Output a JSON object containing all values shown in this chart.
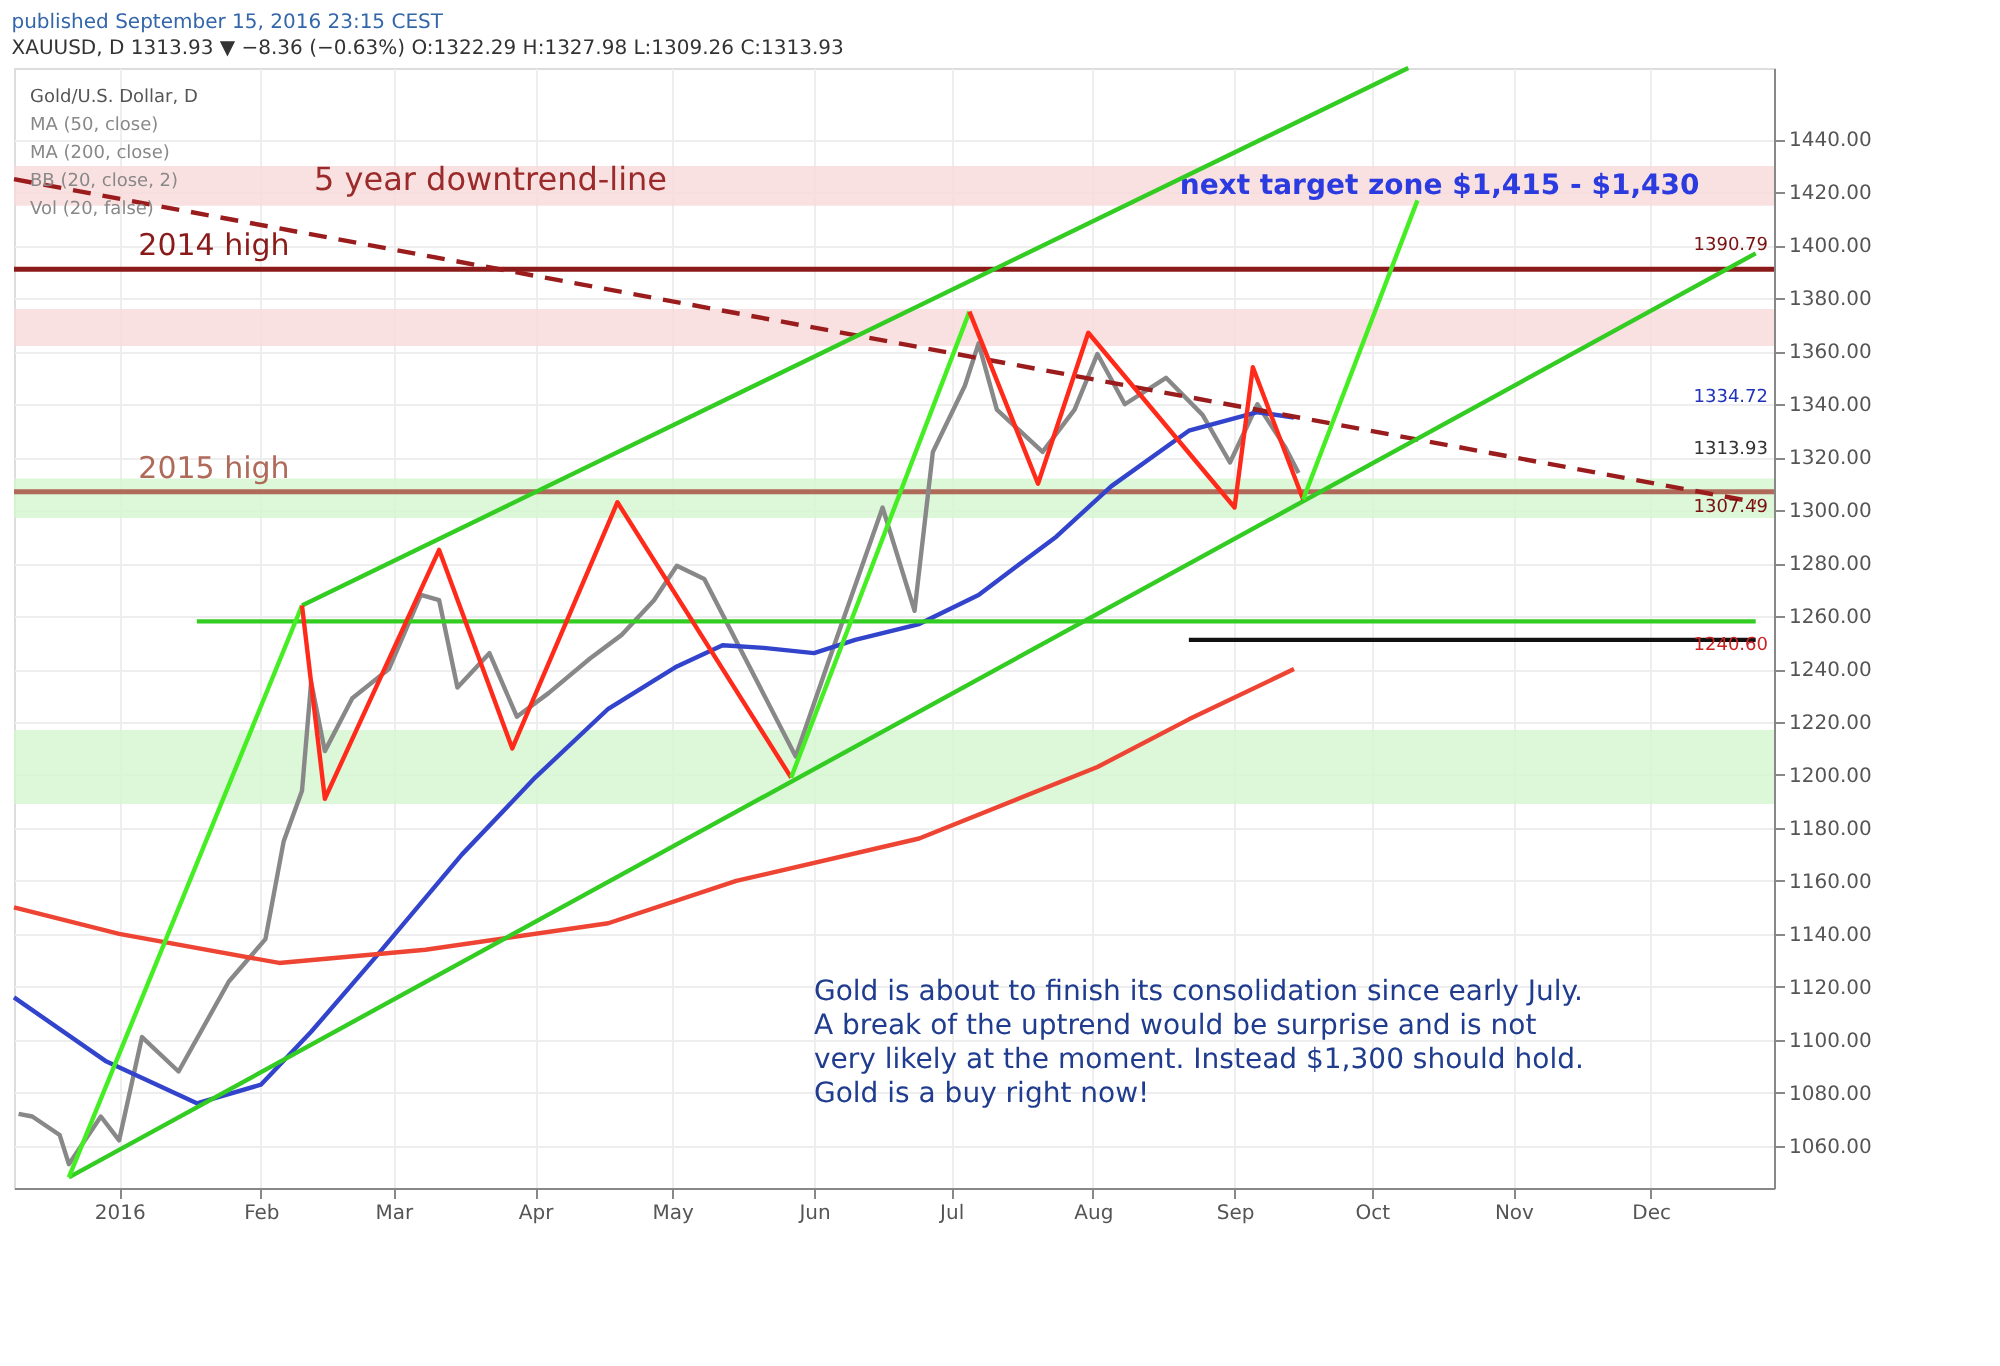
{
  "chart_data": {
    "type": "line",
    "title": "published September 15, 2016 23:15 CEST",
    "subtitle": "XAUUSD, D 1313.93 ▼ −8.36 (−0.63%) O:1322.29 H:1327.98 L:1309.26 C:1313.93",
    "xlim": [
      "2015-12-09",
      "2016-12-28"
    ],
    "ylim": [
      1044,
      1467
    ],
    "xticks": [
      {
        "value": "2016-01-01",
        "label": "2016"
      },
      {
        "value": "2016-02-01",
        "label": "Feb"
      },
      {
        "value": "2016-03-01",
        "label": "Mar"
      },
      {
        "value": "2016-04-01",
        "label": "Apr"
      },
      {
        "value": "2016-05-01",
        "label": "May"
      },
      {
        "value": "2016-06-01",
        "label": "Jun"
      },
      {
        "value": "2016-07-01",
        "label": "Jul"
      },
      {
        "value": "2016-08-01",
        "label": "Aug"
      },
      {
        "value": "2016-09-01",
        "label": "Sep"
      },
      {
        "value": "2016-10-01",
        "label": "Oct"
      },
      {
        "value": "2016-11-01",
        "label": "Nov"
      },
      {
        "value": "2016-12-01",
        "label": "Dec"
      }
    ],
    "yticks": [
      {
        "value": 1060,
        "label": "1060.00"
      },
      {
        "value": 1080,
        "label": "1080.00"
      },
      {
        "value": 1100,
        "label": "1100.00"
      },
      {
        "value": 1120,
        "label": "1120.00"
      },
      {
        "value": 1140,
        "label": "1140.00"
      },
      {
        "value": 1160,
        "label": "1160.00"
      },
      {
        "value": 1180,
        "label": "1180.00"
      },
      {
        "value": 1200,
        "label": "1200.00"
      },
      {
        "value": 1220,
        "label": "1220.00"
      },
      {
        "value": 1240,
        "label": "1240.00"
      },
      {
        "value": 1260,
        "label": "1260.00"
      },
      {
        "value": 1280,
        "label": "1280.00"
      },
      {
        "value": 1300,
        "label": "1300.00"
      },
      {
        "value": 1320,
        "label": "1320.00"
      },
      {
        "value": 1340,
        "label": "1340.00"
      },
      {
        "value": 1360,
        "label": "1360.00"
      },
      {
        "value": 1380,
        "label": "1380.00"
      },
      {
        "value": 1400,
        "label": "1400.00"
      },
      {
        "value": 1420,
        "label": "1420.00"
      },
      {
        "value": 1440,
        "label": "1440.00"
      }
    ],
    "grid": true,
    "bands": [
      {
        "axis": "y",
        "from": 1362,
        "to": 1376,
        "color": "#f9dada"
      },
      {
        "axis": "y",
        "from": 1297,
        "to": 1312,
        "color": "#d4f5d0"
      },
      {
        "axis": "y",
        "from": 1189,
        "to": 1217,
        "color": "#d4f5d0"
      },
      {
        "axis": "y",
        "from": 1415,
        "to": 1430,
        "color": "#f9dada",
        "label": "next target zone $1,415 - $1,430"
      }
    ],
    "ref_lines": [
      {
        "axis": "y",
        "value": 1391,
        "label": "2014 high",
        "color": "#8b1a1a"
      },
      {
        "axis": "y",
        "value": 1307,
        "label": "2015 high",
        "color": "#b06a5a"
      }
    ],
    "series": [
      {
        "type": "line",
        "color": "#888888",
        "line_style": "solid",
        "x": [
          "2015-12-10",
          "2015-12-13",
          "2015-12-19",
          "2015-12-21",
          "2015-12-28",
          "2016-01-01",
          "2016-01-06",
          "2016-01-14",
          "2016-01-25",
          "2016-02-02",
          "2016-02-06",
          "2016-02-10",
          "2016-02-12",
          "2016-02-15",
          "2016-02-21",
          "2016-02-29",
          "2016-03-07",
          "2016-03-11",
          "2016-03-15",
          "2016-03-22",
          "2016-03-28",
          "2016-04-04",
          "2016-04-13",
          "2016-04-20",
          "2016-04-27",
          "2016-05-02",
          "2016-05-08",
          "2016-05-28",
          "2016-06-04",
          "2016-06-16",
          "2016-06-23",
          "2016-06-27",
          "2016-07-04",
          "2016-07-07",
          "2016-07-11",
          "2016-07-21",
          "2016-07-28",
          "2016-08-02",
          "2016-08-08",
          "2016-08-17",
          "2016-08-25",
          "2016-08-31",
          "2016-09-06",
          "2016-09-12",
          "2016-09-15"
        ],
        "values": [
          1072,
          1071,
          1064,
          1053,
          1071,
          1062,
          1101,
          1088,
          1122,
          1138,
          1175,
          1194,
          1235,
          1209,
          1229,
          1240,
          1268,
          1266,
          1233,
          1246,
          1222,
          1231,
          1244,
          1253,
          1266,
          1279,
          1274,
          1207,
          1242,
          1301,
          1262,
          1322,
          1347,
          1363,
          1338,
          1322,
          1338,
          1359,
          1340,
          1350,
          1336,
          1318,
          1340,
          1324,
          1314
        ]
      },
      {
        "type": "line",
        "color": "#3344cc",
        "line_style": "solid",
        "x": [
          "2015-12-09",
          "2015-12-29",
          "2016-01-18",
          "2016-02-01",
          "2016-02-12",
          "2016-02-26",
          "2016-03-16",
          "2016-04-01",
          "2016-04-17",
          "2016-05-02",
          "2016-05-12",
          "2016-05-21",
          "2016-06-01",
          "2016-06-10",
          "2016-06-24",
          "2016-07-07",
          "2016-07-24",
          "2016-08-05",
          "2016-08-22",
          "2016-09-06",
          "2016-09-14"
        ],
        "values": [
          1116,
          1092,
          1076,
          1083,
          1103,
          1131,
          1170,
          1199,
          1225,
          1241,
          1249,
          1248,
          1246,
          1251,
          1257,
          1268,
          1290,
          1309,
          1330,
          1337,
          1335
        ]
      },
      {
        "type": "line",
        "color": "#ee4433",
        "line_style": "solid",
        "x": [
          "2015-12-09",
          "2016-01-01",
          "2016-02-05",
          "2016-03-08",
          "2016-04-17",
          "2016-05-15",
          "2016-06-24",
          "2016-08-02",
          "2016-08-22",
          "2016-09-14"
        ],
        "values": [
          1150,
          1140,
          1129,
          1134,
          1144,
          1160,
          1176,
          1203,
          1221,
          1240
        ]
      },
      {
        "type": "line",
        "color": "#9b1c1c",
        "line_style": "dashed",
        "x": [
          "2015-12-09",
          "2016-12-24"
        ],
        "values": [
          1425,
          1303
        ]
      },
      {
        "type": "line",
        "color": "#33cc22",
        "line_style": "solid",
        "x": [
          "2016-01-18",
          "2016-12-24"
        ],
        "values": [
          1258,
          1258
        ]
      },
      {
        "type": "line",
        "color": "#111111",
        "line_style": "solid",
        "x": [
          "2016-08-22",
          "2016-12-24"
        ],
        "values": [
          1251,
          1251
        ]
      },
      {
        "type": "line",
        "color": "#33cc22",
        "line_style": "solid",
        "x": [
          "2016-02-10",
          "2016-10-09"
        ],
        "values": [
          1264,
          1467
        ]
      },
      {
        "type": "line",
        "color": "#33cc22",
        "line_style": "solid",
        "x": [
          "2015-12-21",
          "2016-12-24"
        ],
        "values": [
          1048,
          1397
        ]
      },
      {
        "type": "line",
        "color": "#44ee22",
        "line_style": "solid",
        "x": [
          "2015-12-21",
          "2016-02-10"
        ],
        "values": [
          1048,
          1264
        ]
      },
      {
        "type": "line",
        "color": "#ff2a1a",
        "line_style": "solid",
        "x": [
          "2016-02-10",
          "2016-02-15",
          "2016-03-11",
          "2016-03-27",
          "2016-04-19",
          "2016-05-27"
        ],
        "values": [
          1264,
          1191,
          1285,
          1210,
          1303,
          1199
        ]
      },
      {
        "type": "line",
        "color": "#44ee22",
        "line_style": "solid",
        "x": [
          "2016-05-27",
          "2016-07-05"
        ],
        "values": [
          1199,
          1375
        ]
      },
      {
        "type": "line",
        "color": "#ff2a1a",
        "line_style": "solid",
        "x": [
          "2016-07-05",
          "2016-07-20",
          "2016-07-31",
          "2016-09-01",
          "2016-09-05",
          "2016-09-16"
        ],
        "values": [
          1375,
          1310,
          1367,
          1301,
          1354,
          1304
        ]
      },
      {
        "type": "line",
        "color": "#44ee22",
        "line_style": "solid",
        "x": [
          "2016-09-16",
          "2016-10-11"
        ],
        "values": [
          1304,
          1417
        ]
      }
    ],
    "annotations": [
      "5 year downtrend-line",
      "Gold is about to finish its consolidation since early July.\nA break of the uptrend would be surprise and is not\nvery likely at the moment. Instead $1,300 should hold.\nGold is a buy right now!",
      "Gold/U.S. Dollar, D",
      "MA (50, close)",
      "MA (200, close)",
      "BB (20, close, 2)",
      "Vol (20, false)",
      "1390.79",
      "1334.72",
      "1313.93",
      "1307.49",
      "1240.60"
    ]
  }
}
